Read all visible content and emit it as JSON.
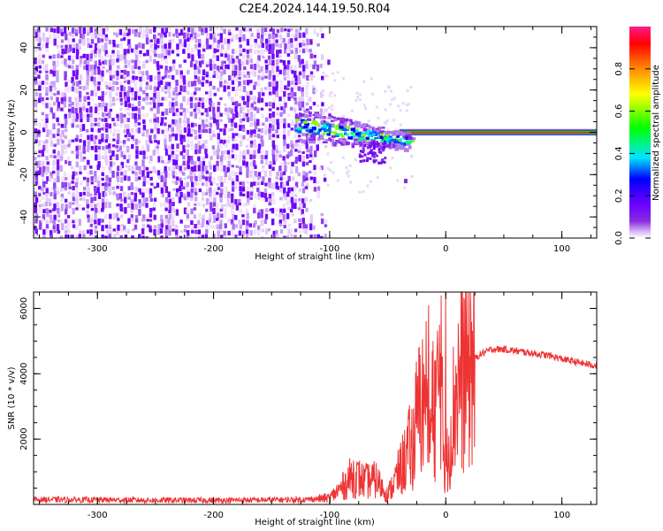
{
  "figure": {
    "title": "C2E4.2024.144.19.50.R04"
  },
  "colorbar": {
    "label": "Normalized spectral amplitude",
    "ticks": [
      "0.0",
      "0.2",
      "0.4",
      "0.6",
      "0.8"
    ],
    "tick_values": [
      0.0,
      0.2,
      0.4,
      0.6,
      0.8
    ],
    "range": [
      0,
      1
    ],
    "colormap": [
      "#ffffff",
      "#d9b8f5",
      "#8a2be2",
      "#6a00ff",
      "#0000ff",
      "#00e5ff",
      "#00ff00",
      "#ffff00",
      "#ff8c00",
      "#ff0000",
      "#ff1a8c"
    ]
  },
  "chart_data": [
    {
      "type": "heatmap",
      "xlabel": "Height of straight line (km)",
      "ylabel": "Frequency (Hz)",
      "xlim": [
        -355,
        130
      ],
      "ylim": [
        -50,
        50
      ],
      "xticks": [
        -300,
        -200,
        -100,
        0,
        100
      ],
      "xtick_labels": [
        "-300",
        "-200",
        "-100",
        "0",
        "100"
      ],
      "yticks": [
        -40,
        -20,
        0,
        20,
        40
      ],
      "ytick_labels": [
        "-40",
        "-20",
        "0",
        "20",
        "40"
      ],
      "noise_region": {
        "x_range": [
          -355,
          -110
        ],
        "amplitude": 0.25
      },
      "signal_band": {
        "x_range": [
          -130,
          130
        ],
        "frequency_center": 0,
        "amplitude": 0.9
      }
    },
    {
      "type": "line",
      "xlabel": "Height of straight line (km)",
      "ylabel": "SNR (10 * v/v)",
      "xlim": [
        -355,
        130
      ],
      "ylim": [
        0,
        6500
      ],
      "xticks": [
        -300,
        -200,
        -100,
        0,
        100
      ],
      "xtick_labels": [
        "-300",
        "-200",
        "-100",
        "0",
        "100"
      ],
      "yticks": [
        2000,
        4000,
        6000
      ],
      "ytick_labels": [
        "2000",
        "4000",
        "6000"
      ],
      "color": "#ee3333",
      "series": [
        {
          "x": [
            -355,
            -300,
            -250,
            -200,
            -150,
            -120,
            -100,
            -90,
            -80,
            -70,
            -60,
            -50,
            -40,
            -30,
            -25,
            -20,
            -15,
            -10,
            -5,
            0,
            5,
            10,
            15,
            20,
            30,
            40,
            50,
            60,
            70,
            80,
            90,
            100,
            110,
            120,
            130
          ],
          "y": [
            150,
            140,
            130,
            125,
            140,
            150,
            200,
            500,
            900,
            700,
            750,
            300,
            1000,
            1800,
            2600,
            3300,
            2400,
            3000,
            3700,
            1000,
            2500,
            3700,
            4100,
            4300,
            4600,
            4750,
            4750,
            4700,
            4650,
            4600,
            4550,
            4450,
            4380,
            4300,
            4250
          ]
        }
      ]
    }
  ]
}
